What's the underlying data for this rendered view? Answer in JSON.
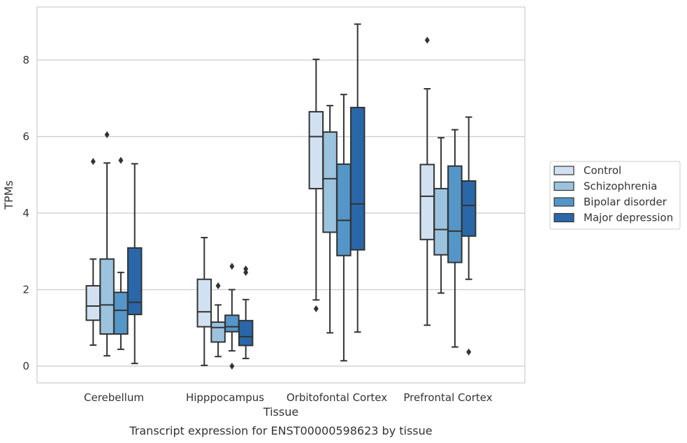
{
  "chart_data": {
    "type": "boxplot",
    "title": "",
    "caption": "Transcript expression for ENST00000598623 by tissue",
    "xlabel": "Tissue",
    "ylabel": "TPMs",
    "ylim": [
      -0.4,
      9.4
    ],
    "yticks": [
      0,
      2,
      4,
      6,
      8
    ],
    "grid": "horizontal",
    "legend_position": "right",
    "categories": [
      "Cerebellum",
      "Hipppocampus",
      "Orbitofontal Cortex",
      "Prefrontal Cortex"
    ],
    "series": [
      {
        "name": "Control",
        "color": "#d2e1f1",
        "boxes": [
          {
            "whislo": 0.55,
            "q1": 1.2,
            "med": 1.57,
            "q3": 2.1,
            "whishi": 2.8,
            "fliers": [
              5.35
            ]
          },
          {
            "whislo": 0.02,
            "q1": 1.03,
            "med": 1.42,
            "q3": 2.27,
            "whishi": 3.36,
            "fliers": []
          },
          {
            "whislo": 1.73,
            "q1": 4.64,
            "med": 6.0,
            "q3": 6.65,
            "whishi": 8.02,
            "fliers": [
              1.5
            ]
          },
          {
            "whislo": 1.07,
            "q1": 3.31,
            "med": 4.44,
            "q3": 5.27,
            "whishi": 7.25,
            "fliers": [
              8.52
            ]
          }
        ]
      },
      {
        "name": "Schizophrenia",
        "color": "#9cc3de",
        "boxes": [
          {
            "whislo": 0.27,
            "q1": 0.84,
            "med": 1.6,
            "q3": 2.8,
            "whishi": 5.31,
            "fliers": [
              6.05
            ]
          },
          {
            "whislo": 0.25,
            "q1": 0.63,
            "med": 1.01,
            "q3": 1.15,
            "whishi": 1.6,
            "fliers": [
              2.1
            ]
          },
          {
            "whislo": 0.87,
            "q1": 3.5,
            "med": 4.9,
            "q3": 6.12,
            "whishi": 6.81,
            "fliers": []
          },
          {
            "whislo": 1.91,
            "q1": 2.91,
            "med": 3.57,
            "q3": 4.64,
            "whishi": 5.97,
            "fliers": []
          }
        ]
      },
      {
        "name": "Bipolar disorder",
        "color": "#5496c7",
        "boxes": [
          {
            "whislo": 0.44,
            "q1": 0.84,
            "med": 1.46,
            "q3": 1.93,
            "whishi": 2.45,
            "fliers": [
              5.38
            ]
          },
          {
            "whislo": 0.4,
            "q1": 0.9,
            "med": 1.03,
            "q3": 1.33,
            "whishi": 2.0,
            "fliers": [
              2.61,
              0.0
            ]
          },
          {
            "whislo": 0.14,
            "q1": 2.89,
            "med": 3.81,
            "q3": 5.28,
            "whishi": 7.1,
            "fliers": []
          },
          {
            "whislo": 0.5,
            "q1": 2.71,
            "med": 3.53,
            "q3": 5.23,
            "whishi": 6.18,
            "fliers": []
          }
        ]
      },
      {
        "name": "Major depression",
        "color": "#2967a8",
        "boxes": [
          {
            "whislo": 0.07,
            "q1": 1.35,
            "med": 1.67,
            "q3": 3.09,
            "whishi": 5.29,
            "fliers": []
          },
          {
            "whislo": 0.2,
            "q1": 0.54,
            "med": 0.77,
            "q3": 1.19,
            "whishi": 1.74,
            "fliers": [
              2.54,
              2.45
            ]
          },
          {
            "whislo": 0.89,
            "q1": 3.04,
            "med": 4.24,
            "q3": 6.76,
            "whishi": 8.94,
            "fliers": []
          },
          {
            "whislo": 2.27,
            "q1": 3.4,
            "med": 4.2,
            "q3": 4.84,
            "whishi": 6.51,
            "fliers": [
              0.37
            ]
          }
        ]
      }
    ]
  }
}
